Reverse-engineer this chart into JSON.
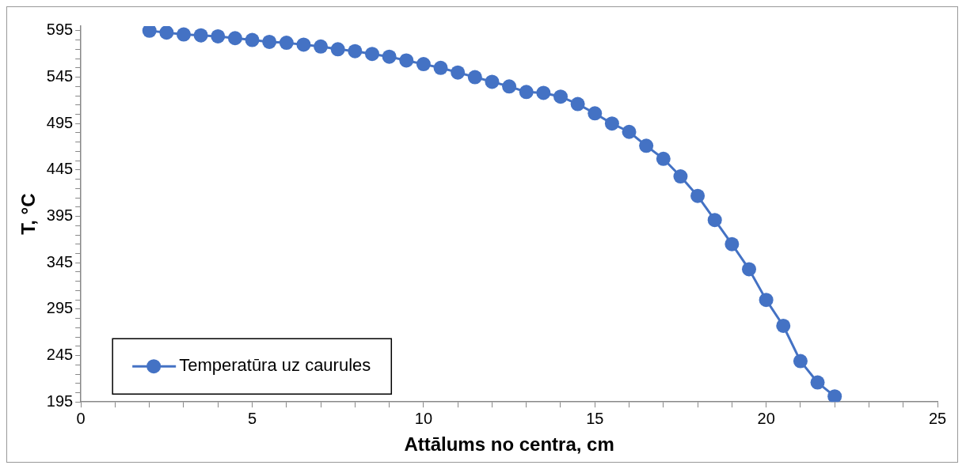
{
  "chart_data": {
    "type": "line",
    "xlabel": "Attālums no centra, cm",
    "ylabel": "T, °C",
    "x": [
      2,
      2.5,
      3,
      3.5,
      4,
      4.5,
      5,
      5.5,
      6,
      6.5,
      7,
      7.5,
      8,
      8.5,
      9,
      9.5,
      10,
      10.5,
      11,
      11.5,
      12,
      12.5,
      13,
      13.5,
      14,
      14.5,
      15,
      15.5,
      16,
      16.5,
      17,
      17.5,
      18,
      18.5,
      19,
      19.5,
      20,
      20.5,
      21,
      21.5,
      22
    ],
    "series": [
      {
        "name": "Temperatūra uz caurules",
        "color": "#4472c4",
        "values": [
          595,
          593,
          591,
          590,
          589,
          587,
          585,
          583,
          582,
          580,
          578,
          575,
          573,
          570,
          567,
          563,
          559,
          555,
          550,
          545,
          540,
          535,
          529,
          528,
          524,
          516,
          506,
          495,
          486,
          471,
          457,
          438,
          417,
          391,
          365,
          338,
          305,
          277,
          239,
          216,
          201
        ]
      }
    ],
    "xlim": [
      0,
      25
    ],
    "xticks": [
      0,
      {
        "value": 1,
        "label": null
      },
      {
        "value": 2,
        "label": null
      },
      {
        "value": 3,
        "label": null
      },
      {
        "value": 4,
        "label": null
      },
      5,
      {
        "value": 6,
        "label": null
      },
      {
        "value": 7,
        "label": null
      },
      {
        "value": 8,
        "label": null
      },
      {
        "value": 9,
        "label": null
      },
      10,
      {
        "value": 11,
        "label": null
      },
      {
        "value": 12,
        "label": null
      },
      {
        "value": 13,
        "label": null
      },
      {
        "value": 14,
        "label": null
      },
      15,
      {
        "value": 16,
        "label": null
      },
      {
        "value": 17,
        "label": null
      },
      {
        "value": 18,
        "label": null
      },
      {
        "value": 19,
        "label": null
      },
      20,
      {
        "value": 21,
        "label": null
      },
      {
        "value": 22,
        "label": null
      },
      {
        "value": 23,
        "label": null
      },
      {
        "value": 24,
        "label": null
      },
      25
    ],
    "ylim": [
      195,
      600
    ],
    "yticks": [
      195,
      {
        "value": 205,
        "label": null
      },
      {
        "value": 215,
        "label": null
      },
      {
        "value": 225,
        "label": null
      },
      {
        "value": 235,
        "label": null
      },
      245,
      {
        "value": 255,
        "label": null
      },
      {
        "value": 265,
        "label": null
      },
      {
        "value": 275,
        "label": null
      },
      {
        "value": 285,
        "label": null
      },
      295,
      {
        "value": 305,
        "label": null
      },
      {
        "value": 315,
        "label": null
      },
      {
        "value": 325,
        "label": null
      },
      {
        "value": 335,
        "label": null
      },
      345,
      {
        "value": 355,
        "label": null
      },
      {
        "value": 365,
        "label": null
      },
      {
        "value": 375,
        "label": null
      },
      {
        "value": 385,
        "label": null
      },
      395,
      {
        "value": 405,
        "label": null
      },
      {
        "value": 415,
        "label": null
      },
      {
        "value": 425,
        "label": null
      },
      {
        "value": 435,
        "label": null
      },
      445,
      {
        "value": 455,
        "label": null
      },
      {
        "value": 465,
        "label": null
      },
      {
        "value": 475,
        "label": null
      },
      {
        "value": 485,
        "label": null
      },
      495,
      {
        "value": 505,
        "label": null
      },
      {
        "value": 515,
        "label": null
      },
      {
        "value": 525,
        "label": null
      },
      {
        "value": 535,
        "label": null
      },
      545,
      {
        "value": 555,
        "label": null
      },
      {
        "value": 565,
        "label": null
      },
      {
        "value": 575,
        "label": null
      },
      {
        "value": 585,
        "label": null
      },
      595
    ],
    "grid": false,
    "legend": "bottom left",
    "marker": "circle",
    "line_style": "solid"
  }
}
